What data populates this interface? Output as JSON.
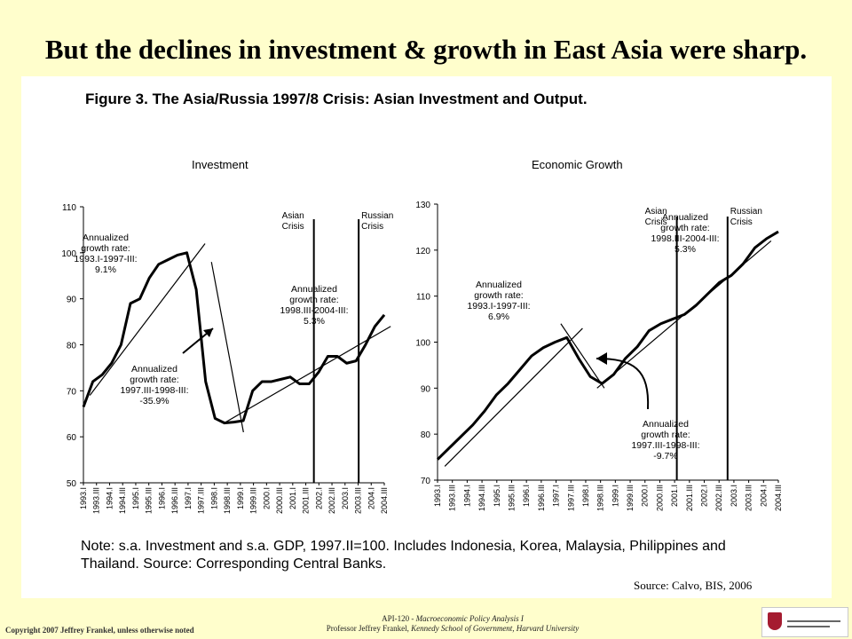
{
  "slide": {
    "title": "But the declines in investment & growth in East Asia were sharp."
  },
  "figure": {
    "title": "Figure 3.  The Asia/Russia 1997/8 Crisis: Asian Investment and Output.",
    "note_line1": "Note: s.a. Investment and s.a. GDP, 1997.II=100. Includes Indonesia, Korea, Malaysia, Philippines and",
    "note_line2": "Thailand. Source: Corresponding Central Banks.",
    "source": "Source: Calvo, BIS, 2006"
  },
  "footer": {
    "copyright": "Copyright 2007 Jeffrey Frankel, unless otherwise noted",
    "course": "API-120 - ",
    "course_italic": "Macroeconomic Policy Analysis I",
    "professor": "Professor Jeffrey Frankel, ",
    "professor_italic": "Kennedy School of Government, Harvard University",
    "logo_text": "HARVARD UNIVERSITY · JOHN F. KENNEDY SCHOOL OF GOVERNMENT"
  },
  "colors": {
    "background": "#fffecc",
    "panel": "#ffffff",
    "ink": "#000000"
  },
  "chart_data": [
    {
      "type": "line",
      "title": "Investment",
      "ylim": [
        50,
        110
      ],
      "yticks": [
        50,
        60,
        70,
        80,
        90,
        100,
        110
      ],
      "grid": false,
      "x_labels": [
        "1993.I",
        "1993.III",
        "1994.I",
        "1994.III",
        "1995.I",
        "1995.III",
        "1996.I",
        "1996.III",
        "1997.I",
        "1997.III",
        "1998.I",
        "1998.III",
        "1999.I",
        "1999.III",
        "2000.I",
        "2000.III",
        "2001.I",
        "2001.III",
        "2002.I",
        "2002.III",
        "2003.I",
        "2003.III",
        "2004.I",
        "2004.III"
      ],
      "series": [
        {
          "style": "bold",
          "values": [
            66.5,
            72,
            73.5,
            76,
            80,
            89,
            90,
            94.5,
            97.5,
            98.5,
            99.5,
            100,
            92,
            72,
            64,
            63,
            63.2,
            63.5,
            70,
            72,
            72,
            72.5,
            73,
            71.5,
            71.5,
            74,
            77.5,
            77.5,
            76,
            76.5,
            80,
            84,
            86.5
          ]
        },
        {
          "style": "thin",
          "values": [
            [
              1,
              69
            ],
            [
              19,
              102
            ]
          ]
        },
        {
          "style": "thin",
          "values": [
            [
              20,
              98
            ],
            [
              25,
              61
            ]
          ]
        },
        {
          "style": "thin",
          "values": [
            [
              22,
              63
            ],
            [
              48,
              84
            ]
          ]
        }
      ],
      "crisis_lines": [
        {
          "label": "Asian\nCrisis",
          "x": 18.5
        },
        {
          "label": "Russian\nCrisis",
          "x": 22
        }
      ],
      "annotations": [
        "Annualized\ngrowth rate:\n1993.I-1997-III:\n9.1%",
        "Annualized\ngrowth rate:\n1997.III-1998-III:\n-35.9%",
        "Annualized\ngrowth rate:\n1998.III-2004-III:\n5.3%"
      ]
    },
    {
      "type": "line",
      "title": "Economic Growth",
      "ylim": [
        70,
        130
      ],
      "yticks": [
        70,
        80,
        90,
        100,
        110,
        120,
        130
      ],
      "grid": false,
      "x_labels": [
        "1993.I",
        "1993.III",
        "1994.I",
        "1994.III",
        "1995.I",
        "1995.III",
        "1996.I",
        "1996.III",
        "1997.I",
        "1997.III",
        "1998.I",
        "1998.III",
        "1999.I",
        "1999.III",
        "2000.I",
        "2000.III",
        "2001.I",
        "2001.III",
        "2002.I",
        "2002.III",
        "2003.I",
        "2003.III",
        "2004.I",
        "2004.III"
      ],
      "series": [
        {
          "style": "bold",
          "values": [
            74.5,
            77,
            79.5,
            82,
            85,
            88.5,
            91,
            94,
            97,
            98.8,
            100,
            101,
            96.5,
            92.5,
            91,
            93,
            96.5,
            99,
            102.5,
            104,
            105,
            106,
            108,
            110.5,
            113,
            114.5,
            117,
            120.5,
            122.5,
            124
          ]
        },
        {
          "style": "thin",
          "values": [
            [
              1,
              73
            ],
            [
              20,
              103
            ]
          ]
        },
        {
          "style": "thin",
          "values": [
            [
              17,
              104
            ],
            [
              23,
              90
            ]
          ]
        },
        {
          "style": "thin",
          "values": [
            [
              22,
              90
            ],
            [
              46,
              122
            ]
          ]
        }
      ],
      "crisis_lines": [
        {
          "label": "Asian\nCrisis",
          "x": 17
        },
        {
          "label": "Russian\nCrisis",
          "x": 20.5
        }
      ],
      "annotations": [
        "Annualized\ngrowth rate:\n1993.I-1997-III:\n6.9%",
        "Annualized\ngrowth rate:\n1997.III-1998-III:\n-9.7%",
        "Annualized\ngrowth rate:\n1998.III-2004-III:\n5.3%"
      ]
    }
  ]
}
